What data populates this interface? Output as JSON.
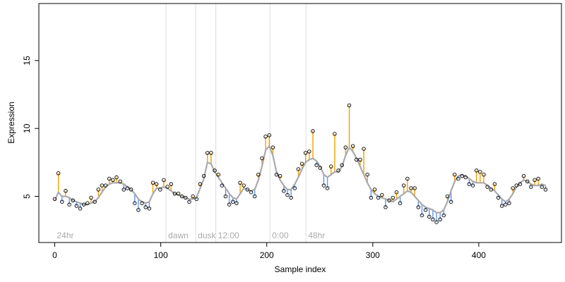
{
  "chart_data": {
    "type": "scatter",
    "title": "",
    "xlabel": "Sample index",
    "ylabel": "Expression",
    "xlim": [
      -15,
      478
    ],
    "ylim": [
      1.6,
      19.2
    ],
    "xticks": [
      0,
      100,
      200,
      300,
      400
    ],
    "yticks": [
      5,
      10,
      15
    ],
    "grid": false,
    "phase_markers": [
      {
        "label": "24hr",
        "x": 0,
        "line": false
      },
      {
        "label": "dawn",
        "x": 105,
        "line": true
      },
      {
        "label": "dusk",
        "x": 133,
        "line": true
      },
      {
        "label": "12:00",
        "x": 152,
        "line": true
      },
      {
        "label": "0:00",
        "x": 203,
        "line": true
      },
      {
        "label": "48hr",
        "x": 237,
        "line": true
      }
    ],
    "colors": {
      "trend": "#aaaaaa",
      "above": "#f5a000",
      "below": "#6495ed",
      "points_stroke": "#000000",
      "phase_line": "#dddddd",
      "phase_text": "#aaaaaa"
    },
    "series": [
      {
        "smoothed": [
          4.7,
          5.3,
          5.0,
          5.0,
          4.9,
          4.7,
          4.6,
          4.5,
          4.4,
          4.4,
          4.5,
          4.6,
          4.9,
          5.3,
          5.7,
          5.9,
          6.0,
          6.0,
          6.0,
          5.9,
          5.7,
          5.5,
          5.2,
          4.8,
          4.6,
          4.5,
          4.6,
          5.2,
          5.6,
          5.6,
          5.7,
          5.6,
          5.4,
          5.2,
          5.1,
          5.0,
          4.9,
          4.8,
          4.8,
          4.9,
          5.6,
          6.3,
          7.5,
          7.4,
          6.8,
          6.4,
          6.0,
          5.6,
          5.2,
          4.9,
          4.8,
          5.2,
          5.6,
          5.5,
          5.4,
          5.5,
          6.2,
          7.2,
          8.4,
          8.7,
          8.0,
          6.8,
          6.2,
          5.8,
          5.5,
          5.5,
          5.9,
          6.4,
          7.0,
          7.5,
          7.7,
          7.8,
          7.6,
          7.2,
          6.6,
          6.4,
          6.6,
          6.8,
          6.8,
          7.2,
          8.0,
          8.6,
          8.3,
          7.8,
          7.2,
          6.6,
          6.0,
          5.5,
          5.2,
          5.0,
          4.9,
          4.8,
          4.7,
          4.6,
          4.8,
          5.0,
          5.2,
          5.4,
          5.3,
          5.0,
          4.7,
          4.4,
          4.2,
          4.1,
          4.0,
          3.8,
          3.8,
          4.0,
          4.6,
          5.4,
          6.1,
          6.5,
          6.6,
          6.5,
          6.3,
          6.1,
          6.0,
          6.0,
          6.0,
          5.8,
          5.6,
          5.4,
          5.1,
          4.8,
          4.6,
          4.8,
          5.2,
          5.7,
          6.0,
          6.2,
          6.1,
          5.9,
          5.8,
          5.8,
          5.9,
          5.8
        ],
        "observed": [
          4.8,
          6.7,
          4.6,
          5.4,
          4.4,
          4.7,
          4.3,
          4.1,
          4.4,
          4.5,
          4.9,
          4.6,
          5.5,
          5.8,
          5.8,
          6.3,
          6.2,
          6.4,
          6.1,
          5.5,
          5.6,
          5.5,
          4.5,
          4.0,
          4.5,
          4.2,
          4.1,
          6.0,
          5.9,
          5.5,
          6.2,
          5.7,
          5.9,
          5.2,
          5.2,
          5.0,
          4.9,
          4.6,
          5.0,
          4.8,
          5.9,
          6.5,
          8.2,
          8.2,
          6.9,
          6.6,
          5.8,
          5.0,
          4.4,
          4.6,
          4.5,
          6.0,
          5.8,
          5.5,
          5.3,
          5.0,
          6.6,
          7.8,
          9.4,
          9.5,
          8.6,
          6.6,
          6.5,
          5.4,
          5.1,
          4.9,
          5.6,
          7.0,
          7.4,
          8.2,
          8.3,
          9.8,
          7.3,
          7.1,
          5.8,
          5.6,
          7.2,
          9.6,
          6.9,
          7.3,
          8.6,
          11.7,
          8.7,
          7.7,
          7.7,
          8.5,
          6.6,
          4.9,
          5.5,
          4.9,
          5.1,
          4.2,
          4.7,
          4.9,
          5.3,
          4.5,
          5.8,
          6.3,
          5.6,
          5.6,
          4.2,
          3.6,
          4.0,
          3.5,
          3.3,
          3.1,
          3.3,
          3.6,
          5.0,
          4.6,
          6.6,
          6.3,
          6.5,
          6.4,
          5.9,
          5.8,
          6.9,
          6.8,
          6.6,
          5.7,
          5.5,
          5.9,
          4.9,
          4.3,
          4.4,
          4.5,
          5.6,
          5.8,
          5.9,
          6.5,
          6.1,
          5.7,
          6.2,
          6.3,
          5.7,
          5.5
        ]
      }
    ]
  }
}
